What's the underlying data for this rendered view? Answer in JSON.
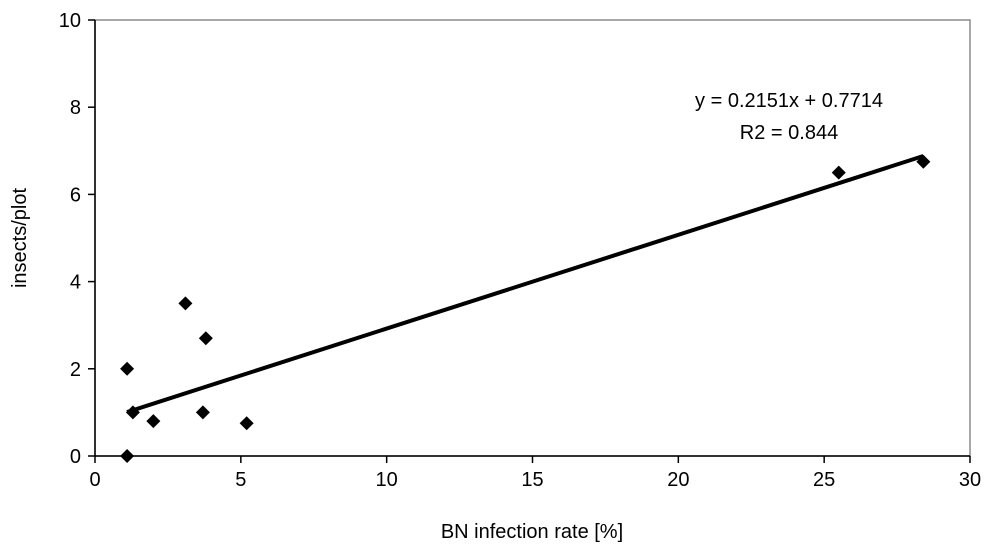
{
  "chart_data": {
    "type": "scatter",
    "title": "",
    "xlabel": "BN infection rate [%]",
    "ylabel": "insects/plot",
    "xlim": [
      0,
      30
    ],
    "ylim": [
      0,
      10
    ],
    "x_ticks": [
      "0",
      "5",
      "10",
      "15",
      "20",
      "25",
      "30"
    ],
    "y_ticks": [
      "0",
      "2",
      "4",
      "6",
      "8",
      "10"
    ],
    "grid": false,
    "legend": "none",
    "marker": "diamond",
    "marker_color": "#000000",
    "series": [
      {
        "points": [
          {
            "x": 1.1,
            "y": 2.0
          },
          {
            "x": 1.1,
            "y": 0.0
          },
          {
            "x": 1.3,
            "y": 1.0
          },
          {
            "x": 2.0,
            "y": 0.8
          },
          {
            "x": 3.1,
            "y": 3.5
          },
          {
            "x": 3.7,
            "y": 1.0
          },
          {
            "x": 3.8,
            "y": 2.7
          },
          {
            "x": 5.2,
            "y": 0.75
          },
          {
            "x": 25.5,
            "y": 6.5
          },
          {
            "x": 28.4,
            "y": 6.75
          }
        ]
      }
    ],
    "trendline": {
      "type": "linear",
      "slope": 0.2151,
      "intercept": 0.7714,
      "x_range": [
        1.1,
        28.4
      ],
      "equation_label": "y = 0.2151x + 0.7714",
      "r2_label": "R2 = 0.844"
    }
  }
}
